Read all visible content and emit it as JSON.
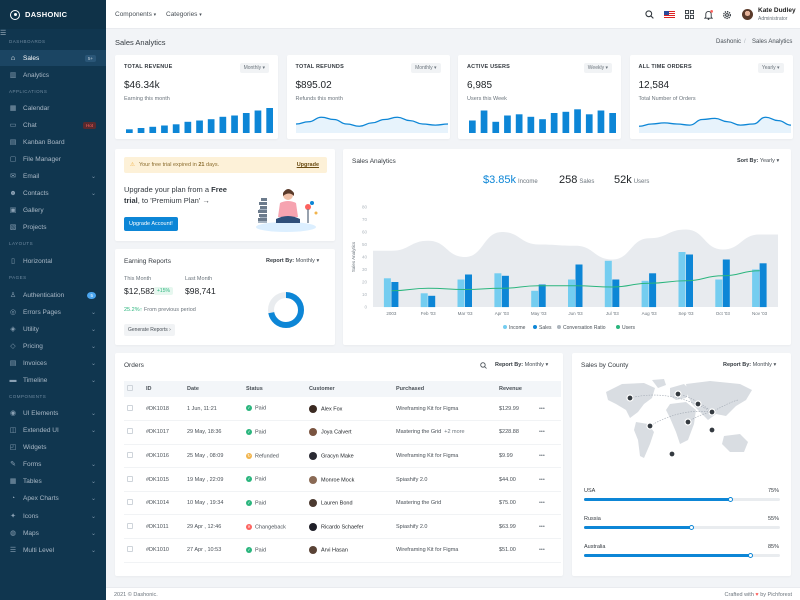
{
  "brand": {
    "name": "DASHONIC"
  },
  "sidebar": {
    "sections": {
      "dashboards": "DASHBOARDS",
      "applications": "APPLICATIONS",
      "layouts": "LAYOUTS",
      "pages": "PAGES",
      "components": "COMPONENTS"
    },
    "items": [
      {
        "label": "Sales",
        "icon": "home-icon",
        "badge": "5+"
      },
      {
        "label": "Analytics",
        "icon": "chart-icon"
      },
      {
        "label": "Calendar",
        "icon": "calendar-icon"
      },
      {
        "label": "Chat",
        "icon": "chat-icon",
        "badge": "Hot"
      },
      {
        "label": "Kanban Board",
        "icon": "kanban-icon"
      },
      {
        "label": "File Manager",
        "icon": "folder-icon"
      },
      {
        "label": "Email",
        "icon": "mail-icon"
      },
      {
        "label": "Contacts",
        "icon": "contacts-icon"
      },
      {
        "label": "Gallery",
        "icon": "gallery-icon"
      },
      {
        "label": "Projects",
        "icon": "projects-icon"
      },
      {
        "label": "Horizontal",
        "icon": "layout-icon"
      },
      {
        "label": "Authentication",
        "icon": "user-icon",
        "badge": "5"
      },
      {
        "label": "Errors Pages",
        "icon": "error-icon"
      },
      {
        "label": "Utility",
        "icon": "utility-icon"
      },
      {
        "label": "Pricing",
        "icon": "pricing-icon"
      },
      {
        "label": "Invoices",
        "icon": "invoice-icon"
      },
      {
        "label": "Timeline",
        "icon": "timeline-icon"
      },
      {
        "label": "UI Elements",
        "icon": "ui-icon"
      },
      {
        "label": "Extended UI",
        "icon": "extended-icon"
      },
      {
        "label": "Widgets",
        "icon": "widgets-icon"
      },
      {
        "label": "Forms",
        "icon": "forms-icon"
      },
      {
        "label": "Tables",
        "icon": "tables-icon"
      },
      {
        "label": "Apex Charts",
        "icon": "apex-icon"
      },
      {
        "label": "Icons",
        "icon": "icons-icon"
      },
      {
        "label": "Maps",
        "icon": "maps-icon"
      },
      {
        "label": "Multi Level",
        "icon": "multilevel-icon"
      }
    ]
  },
  "topbar": {
    "components": "Components",
    "categories": "Categories",
    "user_name": "Kate Dudley",
    "user_role": "Administrator"
  },
  "page": {
    "title": "Sales Analytics",
    "breadcrumb_root": "Dashonic",
    "breadcrumb_current": "Sales Analytics"
  },
  "stats": [
    {
      "title": "TOTAL REVENUE",
      "filter": "Monthly",
      "value": "$46.34k",
      "sub": "Earning this month",
      "chart": "bars",
      "points": [
        3,
        4,
        5,
        6,
        7,
        9,
        10,
        11,
        13,
        14,
        16,
        18,
        20
      ]
    },
    {
      "title": "TOTAL REFUNDS",
      "filter": "Monthly",
      "value": "$895.02",
      "sub": "Refunds this month",
      "chart": "area",
      "points": [
        8,
        10,
        14,
        12,
        8,
        6,
        9,
        12,
        14,
        11,
        8,
        7,
        8
      ]
    },
    {
      "title": "ACTIVE USERS",
      "filter": "Weekly",
      "value": "6,985",
      "sub": "Users this Week",
      "chart": "bars",
      "points": [
        10,
        18,
        9,
        14,
        15,
        13,
        11,
        16,
        17,
        19,
        15,
        18,
        16
      ]
    },
    {
      "title": "ALL TIME ORDERS",
      "filter": "Yearly",
      "value": "12,584",
      "sub": "Total Number of Orders",
      "chart": "area",
      "points": [
        6,
        8,
        9,
        8,
        7,
        12,
        13,
        10,
        7,
        8,
        14,
        11,
        7
      ]
    }
  ],
  "promo": {
    "alert_prefix": "Your free trial expired in ",
    "alert_days": "21",
    "alert_suffix": " days.",
    "upgrade_link": "Upgrade",
    "text_1": "Upgrade your plan from a ",
    "text_bold": "Free trial",
    "text_2": ", to 'Premium Plan' ",
    "arrow": "→",
    "button": "Upgrade Account!"
  },
  "earning": {
    "title": "Earning Reports",
    "report_label": "Report By:",
    "report_value": "Monthly",
    "this_month_label": "This Month",
    "this_month_value": "$12,582",
    "this_month_change": "+15%",
    "last_month_label": "Last Month",
    "last_month_value": "$98,741",
    "growth": "25.2%",
    "growth_arrow": "↑",
    "growth_text": " From previous period",
    "button": "Generate Reports",
    "donut_fraction": 0.72
  },
  "analytics": {
    "title": "Sales Analytics",
    "sort_label": "Sort By:",
    "sort_value": "Yearly",
    "income_value": "$3.85k",
    "income_label": "Income",
    "sales_value": "258",
    "sales_label": "Sales",
    "users_value": "52k",
    "users_label": "Users"
  },
  "chart_data": {
    "type": "bar",
    "ylabel": "Sales Analytics",
    "ylim": [
      0,
      80
    ],
    "yticks": [
      0,
      10,
      20,
      30,
      40,
      50,
      60,
      70,
      80
    ],
    "categories": [
      "2003",
      "Feb '03",
      "Mar '03",
      "Apr '03",
      "May '03",
      "Jun '03",
      "Jul '03",
      "Aug '03",
      "Sep '03",
      "Oct '03",
      "Nov '03"
    ],
    "series": [
      {
        "name": "Income",
        "type": "bar",
        "color": "#74cdf0",
        "values": [
          23,
          11,
          22,
          27,
          13,
          22,
          37,
          21,
          44,
          22,
          30
        ]
      },
      {
        "name": "Sales",
        "type": "bar",
        "color": "#0d86d6",
        "values": [
          20,
          9,
          26,
          25,
          18,
          34,
          22,
          27,
          42,
          38,
          35
        ]
      },
      {
        "name": "Conversation Ratio",
        "type": "area",
        "color": "#e8ebef",
        "values": [
          45,
          53,
          40,
          60,
          50,
          49,
          38,
          55,
          62,
          46,
          58
        ]
      },
      {
        "name": "Users",
        "type": "line",
        "color": "#2ab57d",
        "values": [
          13,
          15,
          14,
          15,
          17,
          17,
          16,
          19,
          21,
          25,
          29
        ]
      }
    ],
    "legend_position": "bottom"
  },
  "orders": {
    "title": "Orders",
    "report_label": "Report By:",
    "report_value": "Monthly",
    "columns": [
      "ID",
      "Date",
      "Status",
      "Customer",
      "Purchased",
      "Revenue"
    ],
    "rows": [
      {
        "id": "#DK1018",
        "date": "1 Jun, 11:21",
        "status": "Paid",
        "customer": "Alex Fox",
        "purchased": "Wireframing Kit for Figma",
        "extra": "",
        "revenue": "$129.99"
      },
      {
        "id": "#DK1017",
        "date": "29 May, 18:36",
        "status": "Paid",
        "customer": "Joya Calvert",
        "purchased": "Mastering the Grid",
        "extra": "+2 more",
        "revenue": "$228.88"
      },
      {
        "id": "#DK1016",
        "date": "25 May , 08:09",
        "status": "Refunded",
        "customer": "Gracyn Make",
        "purchased": "Wireframing Kit for Figma",
        "extra": "",
        "revenue": "$9.99"
      },
      {
        "id": "#DK1015",
        "date": "19 May , 22:09",
        "status": "Paid",
        "customer": "Monroe Mock",
        "purchased": "Spiashify 2.0",
        "extra": "",
        "revenue": "$44.00"
      },
      {
        "id": "#DK1014",
        "date": "10 May , 19:34",
        "status": "Paid",
        "customer": "Lauren Bond",
        "purchased": "Mastering the Grid",
        "extra": "",
        "revenue": "$75.00"
      },
      {
        "id": "#DK1011",
        "date": "29 Apr , 12:46",
        "status": "Changeback",
        "customer": "Ricardo Schaefer",
        "purchased": "Spiashify 2.0",
        "extra": "",
        "revenue": "$63.99"
      },
      {
        "id": "#DK1010",
        "date": "27 Apr , 10:53",
        "status": "Paid",
        "customer": "Arvi Hasan",
        "purchased": "Wireframing Kit for Figma",
        "extra": "",
        "revenue": "$51.00"
      }
    ]
  },
  "county": {
    "title": "Sales by County",
    "report_label": "Report By:",
    "report_value": "Monthly",
    "items": [
      {
        "country": "USA",
        "percent": "75%",
        "value": 0.75
      },
      {
        "country": "Russia",
        "percent": "55%",
        "value": 0.55
      },
      {
        "country": "Australia",
        "percent": "85%",
        "value": 0.85
      }
    ]
  },
  "footer": {
    "copyright": "2021 © Dashonic.",
    "crafted_prefix": "Crafted with ",
    "heart": "♥",
    "crafted_suffix": " by Pichforest"
  },
  "colors": {
    "primary": "#0d86d6",
    "light_blue": "#74cdf0",
    "success": "#2ab57d",
    "warning": "#f1b44c",
    "danger": "#fd625e",
    "sidebar": "#10364f"
  }
}
